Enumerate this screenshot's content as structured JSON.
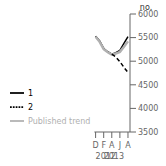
{
  "chart_data": {
    "type": "line",
    "x": [
      0,
      1,
      2,
      3,
      4,
      5,
      6,
      7,
      8
    ],
    "series": [
      {
        "name": "1",
        "color": "#000000",
        "line_style": "solid",
        "values": [
          5530,
          5430,
          5270,
          5200,
          5150,
          5180,
          5230,
          5380,
          5520
        ]
      },
      {
        "name": "Published trend",
        "color": "#b0b0b0",
        "line_style": "solid",
        "values": [
          5520,
          5410,
          5255,
          5190,
          5140,
          5162,
          5198,
          5305,
          5420
        ]
      },
      {
        "name": "2",
        "color": "#000000",
        "line_style": "dashed",
        "values": [
          null,
          null,
          null,
          null,
          5150,
          5090,
          4990,
          4870,
          4760
        ]
      }
    ],
    "xlim": [
      -0.3,
      8.5
    ],
    "xticks": [
      {
        "value": 0,
        "label": "D"
      },
      {
        "value": 2,
        "label": "F"
      },
      {
        "value": 4,
        "label": "A"
      },
      {
        "value": 6,
        "label": "J"
      },
      {
        "value": 8,
        "label": "A"
      }
    ],
    "ylim": [
      3500,
      6000
    ],
    "yticks": [
      3500,
      4000,
      4500,
      5000,
      5500,
      6000
    ],
    "ylabel": "no.",
    "annotations": [
      {
        "text": "2012",
        "x": 0
      },
      {
        "text": "2013",
        "x": 2
      }
    ],
    "legend": "lower left",
    "grid": false
  }
}
